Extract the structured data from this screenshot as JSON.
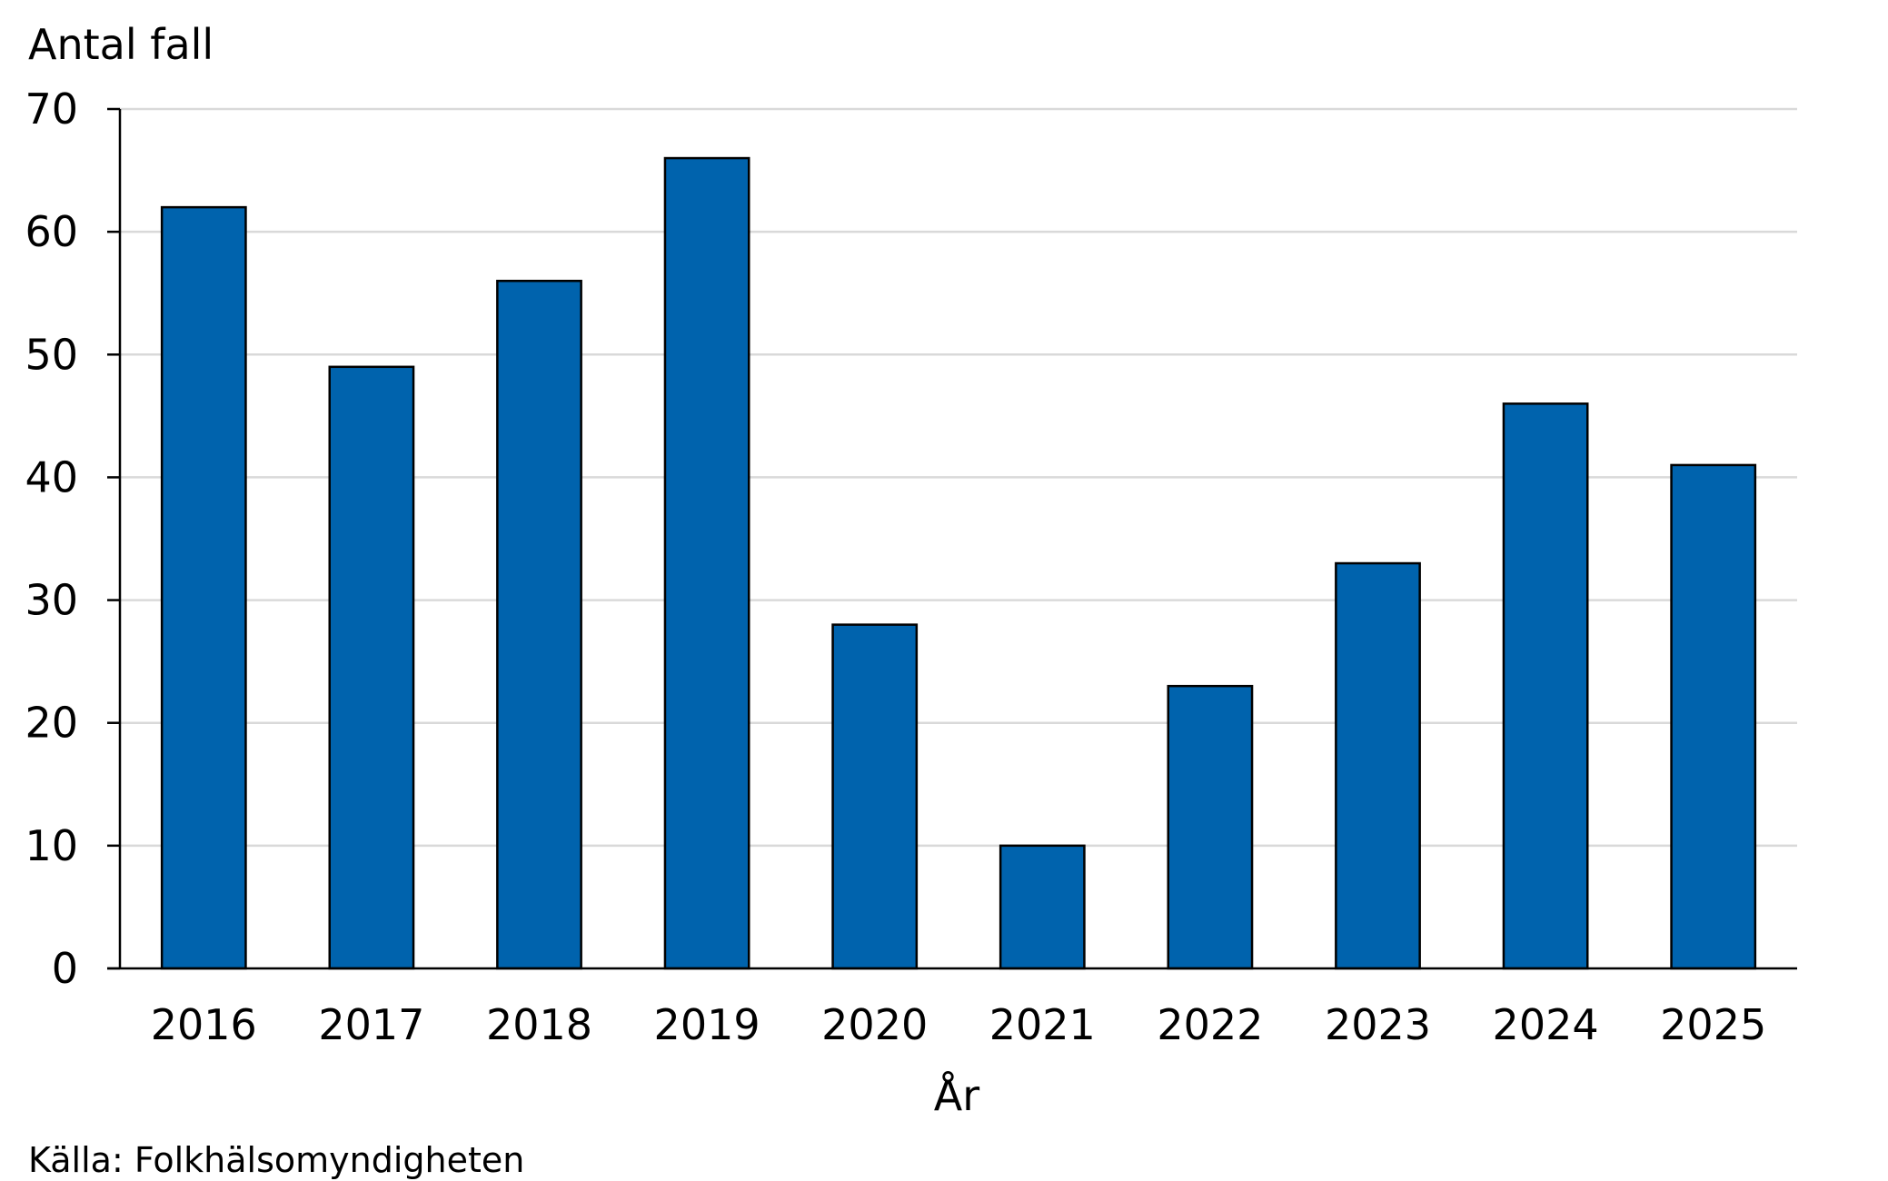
{
  "chart_data": {
    "type": "bar",
    "categories": [
      "2016",
      "2017",
      "2018",
      "2019",
      "2020",
      "2021",
      "2022",
      "2023",
      "2024",
      "2025"
    ],
    "values": [
      62,
      49,
      56,
      66,
      28,
      10,
      23,
      33,
      46,
      41
    ],
    "ylabel": "Antal fall",
    "xlabel": "År",
    "ylim": [
      0,
      70
    ],
    "yticks": [
      "0",
      "10",
      "20",
      "30",
      "40",
      "50",
      "60",
      "70"
    ],
    "grid": true,
    "bar_color": "#0063ad",
    "source": "Källa: Folkhälsomyndigheten"
  }
}
